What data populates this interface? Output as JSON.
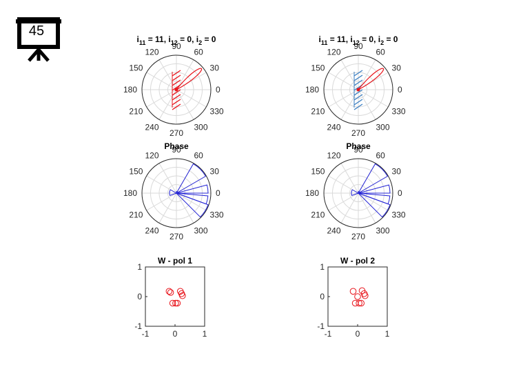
{
  "slide": {
    "number": "45"
  },
  "colors": {
    "amplitude": "#e8141b",
    "amplitude_hatch_right": "#3a7ec1",
    "phase": "#2323d6",
    "weights": "#e8141b",
    "grid": "#d9d9d9"
  },
  "chart_data": [
    {
      "type": "polar",
      "title_parts": {
        "a": "i",
        "a_sub": "11",
        "b": " = 11, i",
        "b_sub": "12",
        "c": " = 0, i",
        "c_sub": "2",
        "d": " = 0"
      },
      "theta_ticks": [
        "0",
        "30",
        "60",
        "90",
        "120",
        "150",
        "180",
        "210",
        "240",
        "270",
        "300",
        "330"
      ],
      "beam": {
        "direction_deg": 40,
        "peak": 0.95,
        "width_deg": 14
      },
      "hatch": "red"
    },
    {
      "type": "polar",
      "title_parts": {
        "a": "i",
        "a_sub": "11",
        "b": " = 11, i",
        "b_sub": "12",
        "c": " = 0, i",
        "c_sub": "2",
        "d": " = 0"
      },
      "theta_ticks": [
        "0",
        "30",
        "60",
        "90",
        "120",
        "150",
        "180",
        "210",
        "240",
        "270",
        "300",
        "330"
      ],
      "beam": {
        "direction_deg": 40,
        "peak": 0.95,
        "width_deg": 14
      },
      "hatch": "blue"
    },
    {
      "type": "polar-rose",
      "title": "Phase",
      "theta_ticks": [
        "0",
        "30",
        "60",
        "90",
        "120",
        "150",
        "180",
        "210",
        "240",
        "270",
        "300",
        "330"
      ],
      "wedges": [
        {
          "from_deg": 30,
          "to_deg": 60,
          "r": 0.98
        },
        {
          "from_deg": 0,
          "to_deg": 15,
          "r": 0.92
        },
        {
          "from_deg": -20,
          "to_deg": -5,
          "r": 0.92
        },
        {
          "from_deg": -45,
          "to_deg": -20,
          "r": 0.98
        },
        {
          "from_deg": 150,
          "to_deg": 200,
          "r": 0.2
        },
        {
          "from_deg": 60,
          "to_deg": 85,
          "r": 0.05
        }
      ]
    },
    {
      "type": "polar-rose",
      "title": "Phase",
      "theta_ticks": [
        "0",
        "30",
        "60",
        "90",
        "120",
        "150",
        "180",
        "210",
        "240",
        "270",
        "300",
        "330"
      ],
      "wedges": [
        {
          "from_deg": 30,
          "to_deg": 60,
          "r": 0.98
        },
        {
          "from_deg": 0,
          "to_deg": 15,
          "r": 0.92
        },
        {
          "from_deg": -20,
          "to_deg": -5,
          "r": 0.92
        },
        {
          "from_deg": -45,
          "to_deg": -20,
          "r": 0.98
        },
        {
          "from_deg": 150,
          "to_deg": 200,
          "r": 0.2
        },
        {
          "from_deg": 60,
          "to_deg": 85,
          "r": 0.05
        }
      ]
    },
    {
      "type": "scatter",
      "title": "W - pol 1",
      "xlim": [
        -1,
        1
      ],
      "ylim": [
        -1,
        1
      ],
      "xticks": [
        "-1",
        "0",
        "1"
      ],
      "yticks": [
        "1",
        "0",
        "-1"
      ],
      "points": [
        [
          -0.2,
          0.18
        ],
        [
          -0.15,
          0.14
        ],
        [
          0.18,
          0.18
        ],
        [
          0.22,
          0.1
        ],
        [
          0.25,
          0.03
        ],
        [
          -0.08,
          -0.22
        ],
        [
          0.08,
          -0.22
        ],
        [
          0.02,
          -0.22
        ]
      ]
    },
    {
      "type": "scatter",
      "title": "W - pol 2",
      "xlim": [
        -1,
        1
      ],
      "ylim": [
        -1,
        1
      ],
      "xticks": [
        "-1",
        "0",
        "1"
      ],
      "yticks": [
        "1",
        "0",
        "-1"
      ],
      "points": [
        [
          -0.15,
          0.18
        ],
        [
          0.15,
          0.2
        ],
        [
          0.22,
          0.1
        ],
        [
          0.25,
          0.03
        ],
        [
          -0.08,
          -0.22
        ],
        [
          0.05,
          -0.22
        ],
        [
          0.12,
          -0.22
        ],
        [
          0.0,
          0.0
        ]
      ]
    }
  ]
}
